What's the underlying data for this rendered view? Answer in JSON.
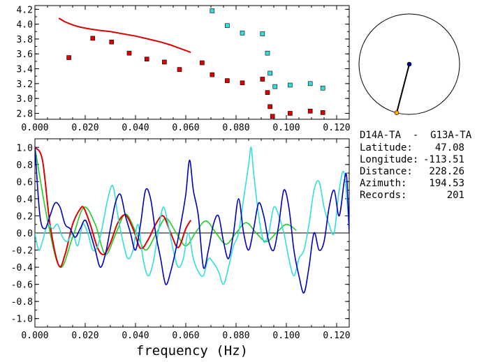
{
  "station_pair": "D14A-TA  -  G13A-TA",
  "info": [
    {
      "label": "Latitude:",
      "value": "47.08"
    },
    {
      "label": "Longitude:",
      "value": "-113.51"
    },
    {
      "label": "Distance:",
      "value": "228.26"
    },
    {
      "label": "Azimuth:",
      "value": "194.53"
    },
    {
      "label": "Records:",
      "value": "201"
    }
  ],
  "colors": {
    "red": "#dd0000",
    "cyan": "#33dddd",
    "blue": "#0000bb",
    "green": "#22cc22",
    "orange": "#ffaa00",
    "navy": "#000080"
  },
  "chart_data": [
    {
      "type": "scatter",
      "xlabel": "",
      "ylabel": "",
      "xlim": [
        0.0,
        0.125
      ],
      "ylim": [
        2.72,
        4.25
      ],
      "xticks": [
        "0.000",
        "0.020",
        "0.040",
        "0.060",
        "0.080",
        "0.100",
        "0.120"
      ],
      "yticks": [
        "2.8",
        "3.0",
        "3.2",
        "3.4",
        "3.6",
        "3.8",
        "4.0",
        "4.2"
      ],
      "grid": false,
      "series": [
        {
          "color": "red",
          "kind": "line",
          "x": [
            0.0095,
            0.012,
            0.015,
            0.018,
            0.021,
            0.025,
            0.03,
            0.035,
            0.04,
            0.045,
            0.05,
            0.054,
            0.058,
            0.062
          ],
          "y": [
            4.08,
            4.03,
            3.99,
            3.96,
            3.94,
            3.92,
            3.9,
            3.87,
            3.84,
            3.8,
            3.76,
            3.72,
            3.67,
            3.62
          ]
        },
        {
          "color": "red",
          "kind": "squares",
          "x": [
            0.0135,
            0.023,
            0.0305,
            0.0375,
            0.0445,
            0.0515,
            0.0575,
            0.0665,
            0.0705,
            0.0765,
            0.0825,
            0.0905,
            0.0925,
            0.0935,
            0.0945,
            0.1015,
            0.1095,
            0.1145
          ],
          "y": [
            3.55,
            3.81,
            3.76,
            3.61,
            3.53,
            3.49,
            3.39,
            3.48,
            3.32,
            3.24,
            3.21,
            3.26,
            3.08,
            2.89,
            2.76,
            2.8,
            2.83,
            2.81
          ]
        },
        {
          "color": "cyan",
          "kind": "squares",
          "x": [
            0.0705,
            0.0765,
            0.0825,
            0.0905,
            0.0925,
            0.0935,
            0.0955,
            0.1015,
            0.1095,
            0.1145
          ],
          "y": [
            4.18,
            3.98,
            3.88,
            3.87,
            3.61,
            3.34,
            3.16,
            3.18,
            3.2,
            3.14
          ]
        }
      ]
    },
    {
      "type": "line",
      "xlabel": "frequency (Hz)",
      "ylabel": "",
      "xlim": [
        0.0,
        0.125
      ],
      "ylim": [
        -1.1,
        1.1
      ],
      "xticks": [
        "0.000",
        "0.020",
        "0.040",
        "0.060",
        "0.080",
        "0.100",
        "0.120"
      ],
      "yticks": [
        "1.0",
        "0.8",
        "0.6",
        "0.4",
        "0.2",
        "0.0",
        "-0.2",
        "-0.4",
        "-0.6",
        "-0.8",
        "-1.0"
      ],
      "grid": false,
      "series": [
        {
          "color": "green",
          "x": [
            0.0,
            0.005,
            0.01,
            0.015,
            0.0195,
            0.024,
            0.028,
            0.032,
            0.036,
            0.04,
            0.044,
            0.048,
            0.052,
            0.056,
            0.06,
            0.064,
            0.068,
            0.072,
            0.076,
            0.08,
            0.084,
            0.088,
            0.092,
            0.096,
            0.1,
            0.104
          ],
          "y": [
            1.0,
            0.15,
            -0.4,
            -0.05,
            0.3,
            0.1,
            -0.25,
            -0.02,
            0.22,
            0.02,
            -0.2,
            -0.02,
            0.17,
            0.01,
            -0.15,
            0.01,
            0.14,
            0.0,
            -0.13,
            0.0,
            0.12,
            0.0,
            -0.1,
            0.0,
            0.1,
            0.03
          ]
        },
        {
          "color": "red",
          "x": [
            0.0,
            0.003,
            0.006,
            0.0095,
            0.012,
            0.015,
            0.018,
            0.0195,
            0.022,
            0.025,
            0.0275,
            0.03,
            0.033,
            0.036,
            0.039,
            0.042,
            0.045,
            0.048,
            0.051,
            0.054,
            0.057,
            0.06,
            0.062
          ],
          "y": [
            1.0,
            0.85,
            0.1,
            -0.38,
            -0.25,
            0.1,
            0.28,
            0.29,
            0.1,
            -0.18,
            -0.25,
            -0.12,
            0.12,
            0.21,
            0.05,
            -0.18,
            -0.08,
            0.1,
            0.2,
            0.0,
            -0.17,
            0.05,
            0.15
          ]
        },
        {
          "color": "cyan",
          "x": [
            0.0,
            0.0015,
            0.003,
            0.005,
            0.007,
            0.009,
            0.011,
            0.013,
            0.015,
            0.017,
            0.019,
            0.021,
            0.023,
            0.025,
            0.027,
            0.029,
            0.031,
            0.033,
            0.035,
            0.037,
            0.039,
            0.041,
            0.043,
            0.045,
            0.047,
            0.049,
            0.051,
            0.053,
            0.055,
            0.057,
            0.059,
            0.061,
            0.063,
            0.065,
            0.067,
            0.069,
            0.071,
            0.073,
            0.075,
            0.077,
            0.079,
            0.081,
            0.083,
            0.085,
            0.086,
            0.087,
            0.089,
            0.091,
            0.093,
            0.095,
            0.097,
            0.099,
            0.101,
            0.103,
            0.105,
            0.107,
            0.109,
            0.111,
            0.113,
            0.115,
            0.117,
            0.119,
            0.121,
            0.123,
            0.125
          ],
          "y": [
            0.0,
            -0.2,
            -0.1,
            0.1,
            0.05,
            0.1,
            -0.05,
            -0.1,
            0.0,
            -0.15,
            0.1,
            0.0,
            -0.2,
            -0.15,
            0.1,
            0.4,
            0.55,
            0.2,
            -0.1,
            -0.3,
            -0.2,
            0.1,
            -0.3,
            -0.5,
            -0.35,
            0.0,
            0.3,
            0.1,
            -0.2,
            -0.4,
            -0.3,
            0.0,
            -0.3,
            -0.45,
            -0.5,
            -0.3,
            -0.35,
            -0.45,
            -0.6,
            -0.4,
            -0.15,
            0.0,
            0.4,
            0.8,
            1.0,
            0.7,
            0.2,
            -0.1,
            0.0,
            0.3,
            0.2,
            0.0,
            -0.3,
            -0.5,
            -0.3,
            -0.2,
            0.1,
            0.5,
            0.6,
            0.3,
            0.1,
            0.0,
            0.5,
            0.7,
            0.05
          ]
        },
        {
          "color": "blue",
          "x": [
            0.0,
            0.002,
            0.004,
            0.006,
            0.008,
            0.01,
            0.012,
            0.014,
            0.016,
            0.018,
            0.02,
            0.022,
            0.024,
            0.026,
            0.028,
            0.03,
            0.032,
            0.034,
            0.036,
            0.038,
            0.04,
            0.042,
            0.044,
            0.046,
            0.048,
            0.05,
            0.052,
            0.054,
            0.056,
            0.058,
            0.06,
            0.0615,
            0.063,
            0.065,
            0.067,
            0.069,
            0.071,
            0.073,
            0.075,
            0.077,
            0.079,
            0.081,
            0.083,
            0.085,
            0.087,
            0.089,
            0.091,
            0.093,
            0.095,
            0.097,
            0.099,
            0.101,
            0.103,
            0.105,
            0.107,
            0.109,
            0.111,
            0.113,
            0.115,
            0.117,
            0.119,
            0.121,
            0.123,
            0.124,
            0.125
          ],
          "y": [
            1.0,
            0.2,
            0.05,
            0.2,
            0.35,
            0.3,
            0.1,
            0.05,
            -0.05,
            0.05,
            0.15,
            0.0,
            -0.2,
            -0.4,
            -0.25,
            0.05,
            0.35,
            0.45,
            0.2,
            0.0,
            -0.2,
            0.1,
            0.5,
            0.4,
            0.0,
            -0.3,
            -0.6,
            -0.45,
            -0.2,
            0.1,
            0.45,
            0.85,
            0.5,
            0.2,
            -0.4,
            -0.2,
            0.1,
            0.2,
            -0.1,
            -0.3,
            0.0,
            0.4,
            0.0,
            -0.2,
            0.05,
            0.35,
            0.2,
            -0.1,
            -0.2,
            0.1,
            0.5,
            0.3,
            -0.2,
            -0.5,
            -0.7,
            -0.4,
            0.0,
            -0.2,
            -0.1,
            0.3,
            0.5,
            0.2,
            0.6,
            0.65,
            0.0
          ]
        }
      ]
    }
  ],
  "azimuth_dial": {
    "azimuth_deg": 194.53,
    "inner_fraction": 0.55
  }
}
